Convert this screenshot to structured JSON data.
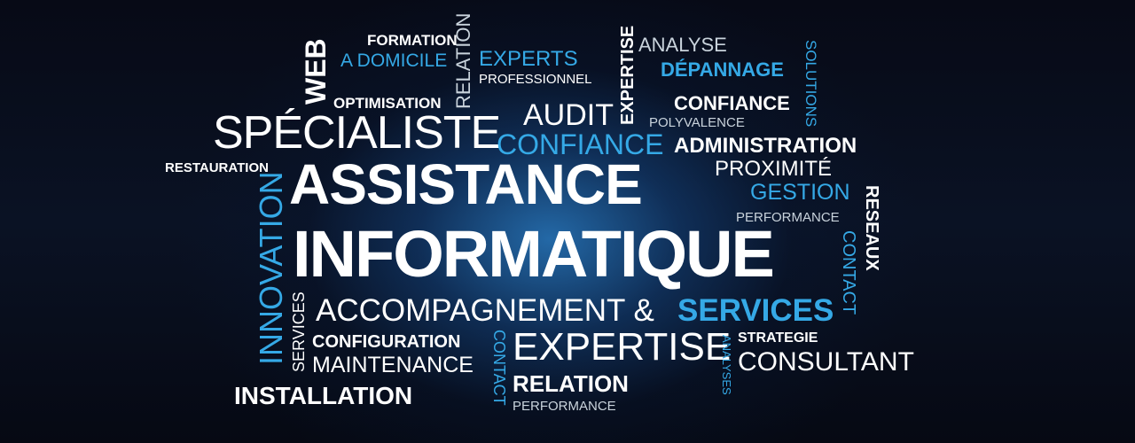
{
  "words": {
    "formation": "FORMATION",
    "a_domicile": "A DOMICILE",
    "relation_vertical": "RELATION",
    "experts": "EXPERTS",
    "professionnel": "PROFESSIONNEL",
    "web": "WEB",
    "optimisation": "OPTIMISATION",
    "specialiste": "SPÉCIALISTE",
    "audit": "AUDIT",
    "confiance_blue": "CONFIANCE",
    "expertise_vertical": "EXPERTISE",
    "analyse": "ANALYSE",
    "depannage": "DÉPANNAGE",
    "solutions": "SOLUTIONS",
    "confiance_white": "CONFIANCE",
    "polyvalence": "POLYVALENCE",
    "administration": "ADMINISTRATION",
    "restauration": "RESTAURATION",
    "assistance": "ASSISTANCE",
    "proximite": "PROXIMITÉ",
    "gestion": "GESTION",
    "reseaux": "RESEAUX",
    "performance_right": "PERFORMANCE",
    "innovation": "INNOVATION",
    "informatique": "INFORMATIQUE",
    "contact_right": "CONTACT",
    "services_vertical": "SERVICES",
    "accompagnement": "ACCOMPAGNEMENT &",
    "services": "SERVICES",
    "configuration": "CONFIGURATION",
    "maintenance": "MAINTENANCE",
    "contact_vertical": "CONTACT",
    "expertise": "EXPERTISE",
    "analyses": "ANALYSES",
    "strategie": "STRATEGIE",
    "consultant": "CONSULTANT",
    "installation": "INSTALLATION",
    "relation": "RELATION",
    "performance_bottom": "PERFORMANCE"
  },
  "colors": {
    "white": "#ffffff",
    "blue": "#35a9e6",
    "grey": "#c9d3dc",
    "background_dark": "#05070f",
    "glow": "#2878be"
  }
}
